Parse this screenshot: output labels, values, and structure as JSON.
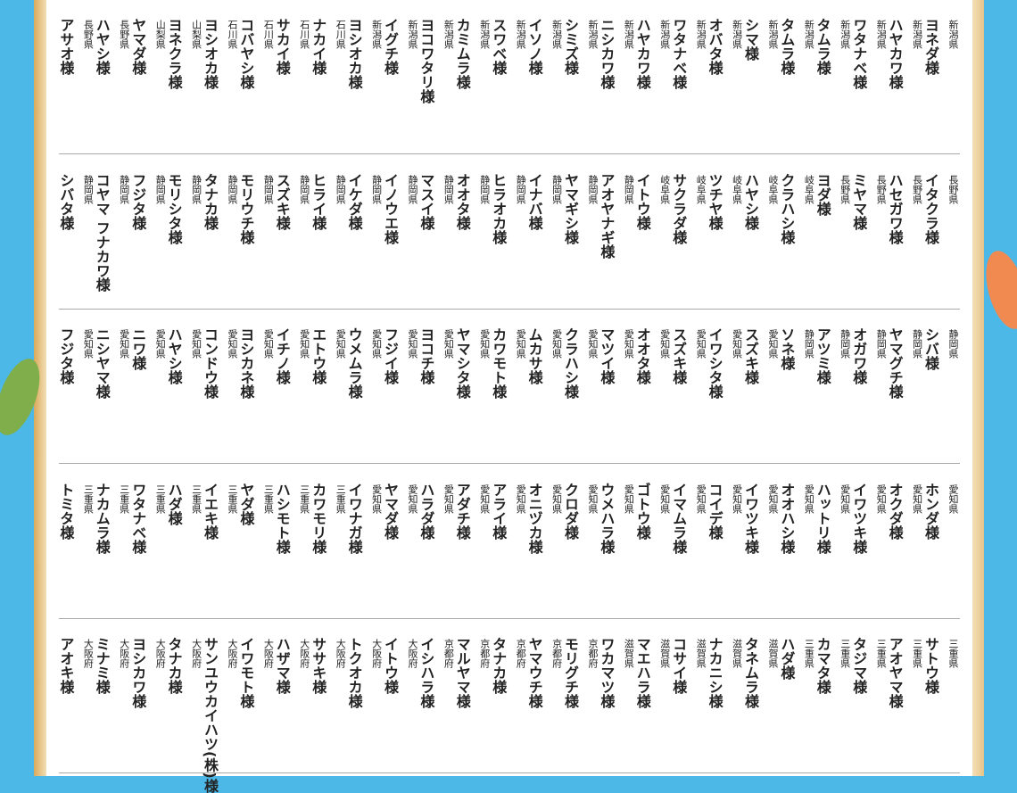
{
  "honorific": "様",
  "rows": [
    [
      [
        "新潟県",
        "ヨネダ"
      ],
      [
        "新潟県",
        "ハヤカワ"
      ],
      [
        "新潟県",
        "ワタナベ"
      ],
      [
        "新潟県",
        "タムラ"
      ],
      [
        "新潟県",
        "タムラ"
      ],
      [
        "新潟県",
        "シマ"
      ],
      [
        "新潟県",
        "オバタ"
      ],
      [
        "新潟県",
        "ワタナベ"
      ],
      [
        "新潟県",
        "ハヤカワ"
      ],
      [
        "新潟県",
        "ニシカワ"
      ],
      [
        "新潟県",
        "シミズ"
      ],
      [
        "新潟県",
        "イソノ"
      ],
      [
        "新潟県",
        "スワベ"
      ],
      [
        "新潟県",
        "カミムラ"
      ],
      [
        "新潟県",
        "ヨコワタリ"
      ],
      [
        "新潟県",
        "イグチ"
      ],
      [
        "新潟県",
        "ヨシオカ"
      ],
      [
        "石川県",
        "ナカイ"
      ],
      [
        "石川県",
        "サカイ"
      ],
      [
        "石川県",
        "コバヤシ"
      ],
      [
        "石川県",
        "ヨシオカ"
      ],
      [
        "山梨県",
        "ヨネクラ"
      ],
      [
        "山梨県",
        "ヤマダ"
      ],
      [
        "長野県",
        "ハヤシ"
      ],
      [
        "長野県",
        "アサオ"
      ]
    ],
    [
      [
        "長野県",
        "イタクラ"
      ],
      [
        "長野県",
        "ハセガワ"
      ],
      [
        "長野県",
        "ミヤマ"
      ],
      [
        "長野県",
        "ヨダ"
      ],
      [
        "岐阜県",
        "クラハシ"
      ],
      [
        "岐阜県",
        "ハヤシ"
      ],
      [
        "岐阜県",
        "ツチヤ"
      ],
      [
        "岐阜県",
        "サクラダ"
      ],
      [
        "岐阜県",
        "イトウ"
      ],
      [
        "静岡県",
        "アオヤナギ"
      ],
      [
        "静岡県",
        "ヤマギシ"
      ],
      [
        "静岡県",
        "イナバ"
      ],
      [
        "静岡県",
        "ヒラオカ"
      ],
      [
        "静岡県",
        "オオタ"
      ],
      [
        "静岡県",
        "マスイ"
      ],
      [
        "静岡県",
        "イノウエ"
      ],
      [
        "静岡県",
        "イケダ"
      ],
      [
        "静岡県",
        "ヒライ"
      ],
      [
        "静岡県",
        "スズキ"
      ],
      [
        "静岡県",
        "モリウチ"
      ],
      [
        "静岡県",
        "タナカ"
      ],
      [
        "静岡県",
        "モリシタ"
      ],
      [
        "静岡県",
        "フジタ"
      ],
      [
        "静岡県",
        "コヤマ フナカワ"
      ],
      [
        "静岡県",
        "シバタ"
      ]
    ],
    [
      [
        "静岡県",
        "シバ"
      ],
      [
        "静岡県",
        "ヤマグチ"
      ],
      [
        "静岡県",
        "オガワ"
      ],
      [
        "静岡県",
        "アツミ"
      ],
      [
        "静岡県",
        "ソネ"
      ],
      [
        "愛知県",
        "スズキ"
      ],
      [
        "愛知県",
        "イワシタ"
      ],
      [
        "愛知県",
        "スズキ"
      ],
      [
        "愛知県",
        "オオタ"
      ],
      [
        "愛知県",
        "マツイ"
      ],
      [
        "愛知県",
        "クラハシ"
      ],
      [
        "愛知県",
        "ムカサ"
      ],
      [
        "愛知県",
        "カワモト"
      ],
      [
        "愛知県",
        "ヤマシタ"
      ],
      [
        "愛知県",
        "ヨコチ"
      ],
      [
        "愛知県",
        "フジイ"
      ],
      [
        "愛知県",
        "ウメムラ"
      ],
      [
        "愛知県",
        "エトウ"
      ],
      [
        "愛知県",
        "イチノ"
      ],
      [
        "愛知県",
        "ヨシカネ"
      ],
      [
        "愛知県",
        "コンドウ"
      ],
      [
        "愛知県",
        "ハヤシ"
      ],
      [
        "愛知県",
        "ニワ"
      ],
      [
        "愛知県",
        "ニシヤマ"
      ],
      [
        "愛知県",
        "フジタ"
      ]
    ],
    [
      [
        "愛知県",
        "ホンダ"
      ],
      [
        "愛知県",
        "オクダ"
      ],
      [
        "愛知県",
        "イワツキ"
      ],
      [
        "愛知県",
        "ハットリ"
      ],
      [
        "愛知県",
        "オオハシ"
      ],
      [
        "愛知県",
        "イワツキ"
      ],
      [
        "愛知県",
        "コイデ"
      ],
      [
        "愛知県",
        "イマムラ"
      ],
      [
        "愛知県",
        "ゴトウ"
      ],
      [
        "愛知県",
        "ウメハラ"
      ],
      [
        "愛知県",
        "クロダ"
      ],
      [
        "愛知県",
        "オニヅカ"
      ],
      [
        "愛知県",
        "アライ"
      ],
      [
        "愛知県",
        "アダチ"
      ],
      [
        "愛知県",
        "ハラダ"
      ],
      [
        "愛知県",
        "ヤマダ"
      ],
      [
        "愛知県",
        "イワナガ"
      ],
      [
        "三重県",
        "カワモリ"
      ],
      [
        "三重県",
        "ハシモト"
      ],
      [
        "三重県",
        "ヤダ"
      ],
      [
        "三重県",
        "イエキ"
      ],
      [
        "三重県",
        "ハダ"
      ],
      [
        "三重県",
        "ワタナベ"
      ],
      [
        "三重県",
        "ナカムラ"
      ],
      [
        "三重県",
        "トミタ"
      ]
    ],
    [
      [
        "三重県",
        "サトウ"
      ],
      [
        "三重県",
        "アオヤマ"
      ],
      [
        "三重県",
        "タジマ"
      ],
      [
        "三重県",
        "カマタ"
      ],
      [
        "三重県",
        "ハダ"
      ],
      [
        "滋賀県",
        "タネムラ"
      ],
      [
        "滋賀県",
        "ナカニシ"
      ],
      [
        "滋賀県",
        "コサイ"
      ],
      [
        "滋賀県",
        "マエハラ"
      ],
      [
        "滋賀県",
        "ワカマツ"
      ],
      [
        "京都府",
        "モリグチ"
      ],
      [
        "京都府",
        "ヤマウチ"
      ],
      [
        "京都府",
        "タナカ"
      ],
      [
        "京都府",
        "マルヤマ"
      ],
      [
        "京都府",
        "イシハラ"
      ],
      [
        "大阪府",
        "イトウ"
      ],
      [
        "大阪府",
        "トクオカ"
      ],
      [
        "大阪府",
        "ササキ"
      ],
      [
        "大阪府",
        "ハザマ"
      ],
      [
        "大阪府",
        "イワモト"
      ],
      [
        "大阪府",
        "サンユウカイハツ(株)"
      ],
      [
        "大阪府",
        "タナカ"
      ],
      [
        "大阪府",
        "ヨシカワ"
      ],
      [
        "大阪府",
        "ミナミ"
      ],
      [
        "大阪府",
        "アオキ"
      ]
    ]
  ]
}
